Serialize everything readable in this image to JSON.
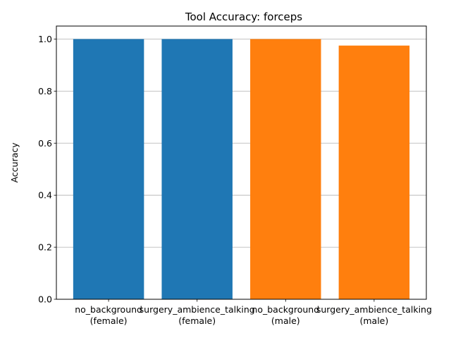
{
  "chart_data": {
    "type": "bar",
    "title": "Tool Accuracy: forceps",
    "xlabel": "",
    "ylabel": "Accuracy",
    "ylim": [
      0,
      1.05
    ],
    "yticks": [
      0.0,
      0.2,
      0.4,
      0.6,
      0.8,
      1.0
    ],
    "ytick_labels": [
      "0.0",
      "0.2",
      "0.4",
      "0.6",
      "0.8",
      "1.0"
    ],
    "grid": "y",
    "legend": "none",
    "categories": [
      [
        "no_background",
        "(female)"
      ],
      [
        "surgery_ambience_talking",
        "(female)"
      ],
      [
        "no_background",
        "(male)"
      ],
      [
        "surgery_ambience_talking",
        "(male)"
      ]
    ],
    "values": [
      1.0,
      1.0,
      1.0,
      0.975
    ],
    "bar_colors": [
      "#1f77b4",
      "#1f77b4",
      "#ff7f0e",
      "#ff7f0e"
    ]
  }
}
